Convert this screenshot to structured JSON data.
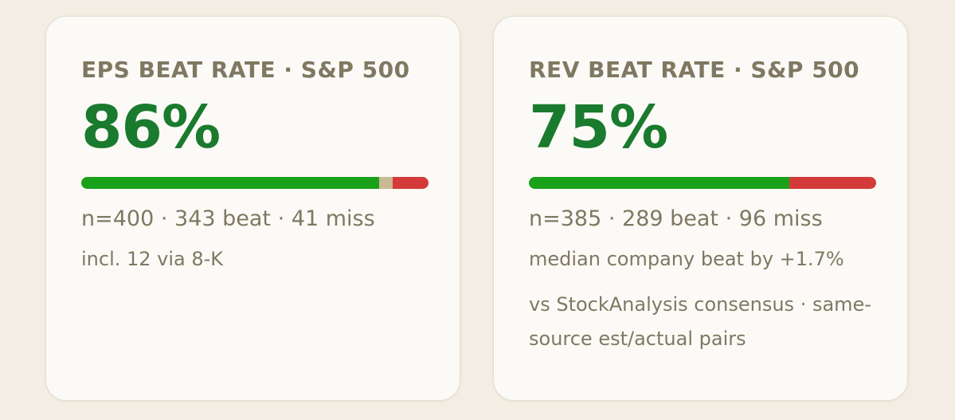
{
  "cards": [
    {
      "title": "EPS BEAT RATE · S&P 500",
      "value": "86%",
      "bar": [
        {
          "value": 343,
          "color": "#1aa11a"
        },
        {
          "value": 16,
          "color": "#c9b994"
        },
        {
          "value": 41,
          "color": "#d43a3a"
        }
      ],
      "stats": "n=400 · 343 beat · 41 miss",
      "notes": [
        "incl. 12 via 8-K"
      ]
    },
    {
      "title": "REV BEAT RATE · S&P 500",
      "value": "75%",
      "bar": [
        {
          "value": 289,
          "color": "#1aa11a"
        },
        {
          "value": 96,
          "color": "#d43a3a"
        }
      ],
      "stats": "n=385 · 289 beat · 96 miss",
      "notes": [
        "median company beat by +1.7%",
        "vs StockAnalysis consensus · same-source est/actual pairs"
      ]
    }
  ]
}
